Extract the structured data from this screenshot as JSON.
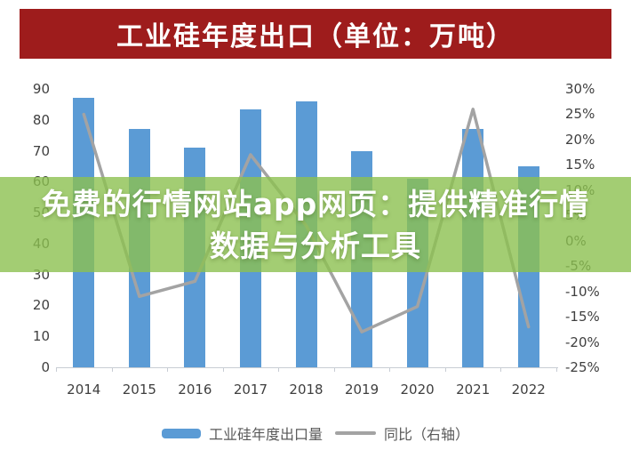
{
  "title": {
    "text": "工业硅年度出口（单位：万吨）",
    "bg_color": "#9e1c1c",
    "text_color": "#ffffff"
  },
  "overlay": {
    "line1": "免费的行情网站app网页：提供精准行情",
    "line2": "数据与分析工具",
    "bg_color": "rgba(140,192,80,0.8)"
  },
  "chart_data": {
    "type": "bar",
    "title": "工业硅年度出口（单位：万吨）",
    "categories": [
      "2014",
      "2015",
      "2016",
      "2017",
      "2018",
      "2019",
      "2020",
      "2021",
      "2022"
    ],
    "series": [
      {
        "name": "工业硅年度出口量",
        "type": "bar",
        "axis": "left",
        "color": "#5b9bd5",
        "values": [
          87,
          77,
          71,
          83.5,
          86,
          70,
          61,
          77,
          65
        ]
      },
      {
        "name": "同比（右轴）",
        "type": "line",
        "axis": "right",
        "color": "#a3a3a3",
        "values": [
          25,
          -11,
          -8,
          17,
          3,
          -18,
          -13,
          26,
          -17
        ]
      }
    ],
    "left_axis": {
      "min": 0,
      "max": 90,
      "step": 10,
      "ticks": [
        "90",
        "80",
        "70",
        "60",
        "50",
        "40",
        "30",
        "20",
        "10",
        "0"
      ]
    },
    "right_axis": {
      "min": -25,
      "max": 30,
      "step": 5,
      "ticks": [
        "30%",
        "25%",
        "20%",
        "15%",
        "10%",
        "5%",
        "0%",
        "-5%",
        "-10%",
        "-15%",
        "-20%",
        "-25%"
      ]
    },
    "grid": false,
    "legend_position": "bottom",
    "axis_color": "#c8cdd4",
    "label_color": "#3f3f3f"
  }
}
